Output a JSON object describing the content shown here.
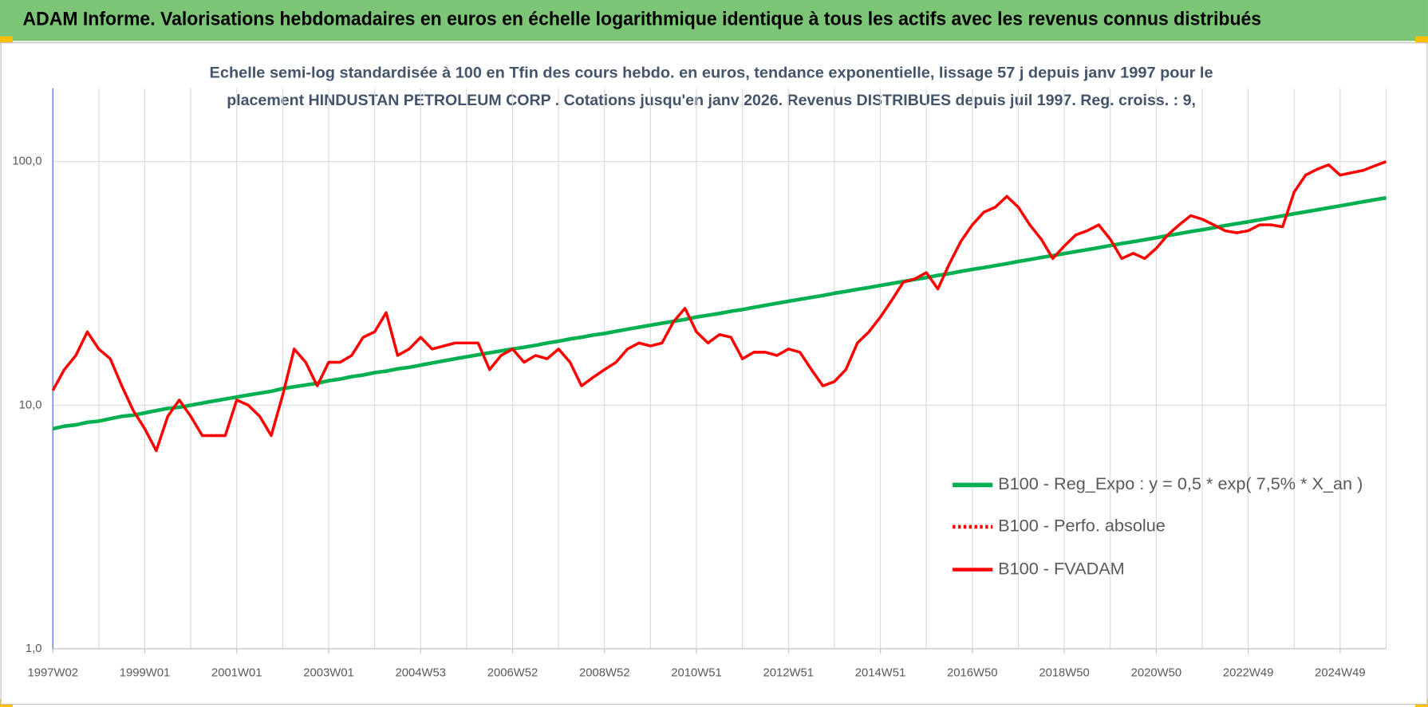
{
  "header": {
    "title": "ADAM Informe. Valorisations hebdomadaires en euros en échelle logarithmique identique à tous les actifs avec les revenus connus distribués"
  },
  "chart_data": {
    "type": "line",
    "subtitle": [
      "Echelle semi-log standardisée à 100 en Tfin des cours hebdo. en euros, tendance exponentielle, lissage 57 j depuis janv 1997 pour le",
      "placement HINDUSTAN PETROLEUM CORP . Cotations jusqu'en janv 2026. Revenus DISTRIBUES depuis juil 1997. Reg. croiss. : 9,"
    ],
    "categories": [
      "1997W02",
      null,
      null,
      null,
      null,
      null,
      null,
      null,
      "1999W01",
      null,
      null,
      null,
      null,
      null,
      null,
      null,
      "2001W01",
      null,
      null,
      null,
      null,
      null,
      null,
      null,
      "2003W01",
      null,
      null,
      null,
      null,
      null,
      null,
      null,
      "2004W53",
      null,
      null,
      null,
      null,
      null,
      null,
      null,
      "2006W52",
      null,
      null,
      null,
      null,
      null,
      null,
      null,
      "2008W52",
      null,
      null,
      null,
      null,
      null,
      null,
      null,
      "2010W51",
      null,
      null,
      null,
      null,
      null,
      null,
      null,
      "2012W51",
      null,
      null,
      null,
      null,
      null,
      null,
      null,
      "2014W51",
      null,
      null,
      null,
      null,
      null,
      null,
      null,
      "2016W50",
      null,
      null,
      null,
      null,
      null,
      null,
      null,
      "2018W50",
      null,
      null,
      null,
      null,
      null,
      null,
      null,
      "2020W50",
      null,
      null,
      null,
      null,
      null,
      null,
      null,
      "2022W49",
      null,
      null,
      null,
      null,
      null,
      null,
      null,
      "2024W49",
      null,
      null,
      null,
      null
    ],
    "series": [
      {
        "name": "B100 - Reg_Expo : y = 0,5 * exp( 7,5% *  X_an )",
        "color": "#00b050",
        "style": "solid",
        "values": [
          8.0,
          8.2,
          8.3,
          8.5,
          8.6,
          8.8,
          9.0,
          9.1,
          9.3,
          9.5,
          9.7,
          9.8,
          10.0,
          10.2,
          10.4,
          10.6,
          10.8,
          11.0,
          11.2,
          11.4,
          11.7,
          11.9,
          12.1,
          12.3,
          12.6,
          12.8,
          13.1,
          13.3,
          13.6,
          13.8,
          14.1,
          14.3,
          14.6,
          14.9,
          15.2,
          15.5,
          15.8,
          16.1,
          16.4,
          16.7,
          17.0,
          17.3,
          17.6,
          18.0,
          18.3,
          18.7,
          19.0,
          19.4,
          19.7,
          20.1,
          20.5,
          20.9,
          21.3,
          21.7,
          22.1,
          22.5,
          23.0,
          23.4,
          23.8,
          24.3,
          24.7,
          25.2,
          25.7,
          26.2,
          26.7,
          27.2,
          27.7,
          28.2,
          28.8,
          29.3,
          29.9,
          30.4,
          31.0,
          31.6,
          32.2,
          32.8,
          33.4,
          34.1,
          34.7,
          35.4,
          36.1,
          36.7,
          37.4,
          38.1,
          38.9,
          39.6,
          40.4,
          41.1,
          41.9,
          42.7,
          43.5,
          44.3,
          45.2,
          46.1,
          46.9,
          47.8,
          48.7,
          49.7,
          50.6,
          51.6,
          52.5,
          53.5,
          54.6,
          55.6,
          56.6,
          57.7,
          58.8,
          59.9,
          61.1,
          62.2,
          63.4,
          64.6,
          65.8,
          67.1,
          68.4,
          69.7,
          71.0
        ]
      },
      {
        "name": "B100 - Perfo. absolue",
        "color": "#ff0000",
        "style": "dotted",
        "values": [
          11.5,
          14,
          16,
          20,
          17,
          15.5,
          12,
          9.5,
          8,
          6.5,
          9,
          10.5,
          9,
          7.5,
          7.5,
          7.5,
          10.5,
          10,
          9,
          7.5,
          11,
          17,
          15,
          12,
          15,
          15,
          16,
          19,
          20,
          24,
          16,
          17,
          19,
          17,
          17.5,
          18,
          18,
          18,
          14,
          16,
          17,
          15,
          16,
          15.5,
          17,
          15,
          12,
          13,
          14,
          15,
          17,
          18,
          17.5,
          18,
          22,
          25,
          20,
          18,
          19.5,
          19,
          15.5,
          16.5,
          16.5,
          16,
          17,
          16.5,
          14,
          12,
          12.5,
          14,
          18,
          20,
          23,
          27,
          32,
          33,
          35,
          30,
          38,
          47,
          55,
          62,
          65,
          72,
          65,
          55,
          48,
          40,
          45,
          50,
          52,
          55,
          48,
          40,
          42,
          40,
          44,
          50,
          55,
          60,
          58,
          55,
          52,
          51,
          52,
          55,
          55,
          54,
          75,
          88,
          93,
          97,
          88,
          90,
          92,
          96,
          100
        ]
      },
      {
        "name": "B100 - FVADAM",
        "color": "#ff0000",
        "style": "solid",
        "values": [
          11.5,
          14,
          16,
          20,
          17,
          15.5,
          12,
          9.5,
          8,
          6.5,
          9,
          10.5,
          9,
          7.5,
          7.5,
          7.5,
          10.5,
          10,
          9,
          7.5,
          11,
          17,
          15,
          12,
          15,
          15,
          16,
          19,
          20,
          24,
          16,
          17,
          19,
          17,
          17.5,
          18,
          18,
          18,
          14,
          16,
          17,
          15,
          16,
          15.5,
          17,
          15,
          12,
          13,
          14,
          15,
          17,
          18,
          17.5,
          18,
          22,
          25,
          20,
          18,
          19.5,
          19,
          15.5,
          16.5,
          16.5,
          16,
          17,
          16.5,
          14,
          12,
          12.5,
          14,
          18,
          20,
          23,
          27,
          32,
          33,
          35,
          30,
          38,
          47,
          55,
          62,
          65,
          72,
          65,
          55,
          48,
          40,
          45,
          50,
          52,
          55,
          48,
          40,
          42,
          40,
          44,
          50,
          55,
          60,
          58,
          55,
          52,
          51,
          52,
          55,
          55,
          54,
          75,
          88,
          93,
          97,
          88,
          90,
          92,
          96,
          100
        ]
      }
    ],
    "ylog": true,
    "ylim": [
      1,
      200
    ],
    "yticks": [
      {
        "value": 1,
        "label": "1,0"
      },
      {
        "value": 10,
        "label": "10,0"
      },
      {
        "value": 100,
        "label": "100,0"
      }
    ],
    "grid": true,
    "legend": "lower right"
  }
}
